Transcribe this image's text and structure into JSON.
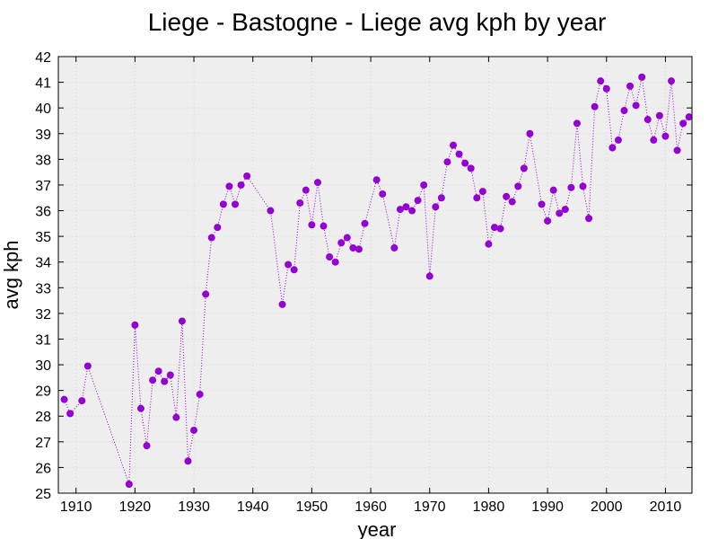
{
  "chart_data": {
    "type": "line",
    "title": "Liege - Bastogne - Liege avg kph by year",
    "xlabel": "year",
    "ylabel": "avg kph",
    "xlim": [
      1907,
      2014.5
    ],
    "ylim": [
      25,
      42
    ],
    "x_ticks": [
      1910,
      1920,
      1930,
      1940,
      1950,
      1960,
      1970,
      1980,
      1990,
      2000,
      2010
    ],
    "y_ticks": [
      25,
      26,
      27,
      28,
      29,
      30,
      31,
      32,
      33,
      34,
      35,
      36,
      37,
      38,
      39,
      40,
      41,
      42
    ],
    "grid": true,
    "line_style": "dotted",
    "markers": true,
    "colors": {
      "series": "#9400d3",
      "plot_background": "#eeeeee",
      "grid": "#d6d6d6",
      "frame": "#000000"
    },
    "series": [
      {
        "x": [
          1908,
          1909,
          1911,
          1912,
          1919,
          1920,
          1921,
          1922,
          1923,
          1924,
          1925,
          1926,
          1927,
          1928,
          1929,
          1930,
          1931,
          1932,
          1933,
          1934,
          1935,
          1936,
          1937,
          1938,
          1939,
          1943,
          1945,
          1946,
          1947,
          1948,
          1949,
          1950,
          1951,
          1952,
          1953,
          1954,
          1955,
          1956,
          1957,
          1958,
          1959,
          1961,
          1962,
          1964,
          1965,
          1966,
          1967,
          1968,
          1969,
          1970,
          1971,
          1972,
          1973,
          1974,
          1975,
          1976,
          1977,
          1978,
          1979,
          1980,
          1981,
          1982,
          1983,
          1984,
          1985,
          1986,
          1987,
          1989,
          1990,
          1991,
          1992,
          1993,
          1994,
          1995,
          1996,
          1997,
          1998,
          1999,
          2000,
          2001,
          2002,
          2003,
          2004,
          2005,
          2006,
          2007,
          2008,
          2009,
          2010,
          2011,
          2012,
          2013,
          2014
        ],
        "y": [
          28.65,
          28.1,
          28.6,
          29.95,
          25.35,
          31.55,
          28.3,
          26.85,
          29.4,
          29.75,
          29.35,
          29.6,
          27.95,
          31.7,
          26.25,
          27.45,
          28.85,
          32.75,
          34.95,
          35.35,
          36.25,
          36.95,
          36.25,
          37.0,
          37.35,
          36.0,
          32.35,
          33.9,
          33.7,
          36.3,
          36.8,
          35.45,
          37.1,
          35.4,
          34.2,
          34.0,
          34.75,
          34.95,
          34.55,
          34.5,
          35.5,
          37.2,
          36.65,
          34.55,
          36.05,
          36.15,
          36.0,
          36.4,
          37.0,
          33.45,
          36.15,
          36.5,
          37.9,
          38.55,
          38.2,
          37.85,
          37.65,
          36.5,
          36.75,
          34.7,
          35.35,
          35.3,
          36.55,
          36.35,
          36.95,
          37.65,
          39.0,
          36.25,
          35.6,
          36.8,
          35.9,
          36.05,
          36.9,
          39.4,
          36.95,
          35.7,
          40.05,
          41.05,
          40.75,
          38.45,
          38.75,
          39.9,
          40.85,
          40.1,
          41.2,
          39.55,
          38.75,
          39.7,
          38.9,
          41.05,
          38.35,
          39.4,
          39.65
        ]
      }
    ]
  }
}
